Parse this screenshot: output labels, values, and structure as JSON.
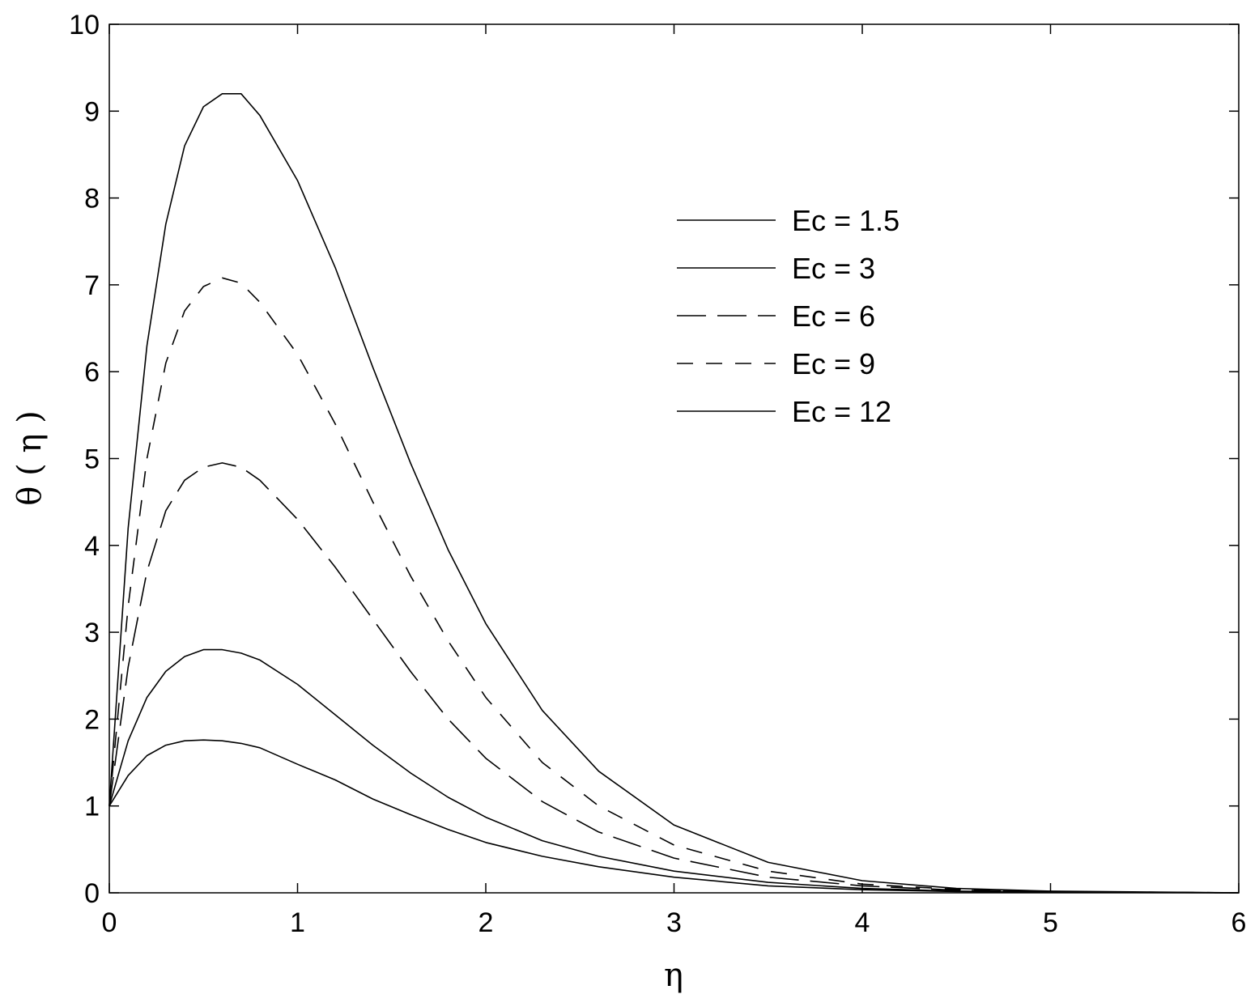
{
  "chart_data": {
    "type": "line",
    "xlabel": "η",
    "ylabel": "θ ( η )",
    "xlim": [
      0,
      6
    ],
    "ylim": [
      0,
      10
    ],
    "xticks": [
      "0",
      "1",
      "2",
      "3",
      "4",
      "5",
      "6"
    ],
    "yticks": [
      "0",
      "1",
      "2",
      "3",
      "4",
      "5",
      "6",
      "7",
      "8",
      "9",
      "10"
    ],
    "grid": false,
    "legend_position": "top-right",
    "series": [
      {
        "name": "Ec = 1.5",
        "dash": "solid",
        "x": [
          0,
          0.1,
          0.2,
          0.3,
          0.4,
          0.5,
          0.6,
          0.7,
          0.8,
          1.0,
          1.2,
          1.4,
          1.6,
          1.8,
          2.0,
          2.3,
          2.6,
          3.0,
          3.5,
          4.0,
          4.5,
          5.0,
          6.0
        ],
        "values": [
          1.0,
          1.35,
          1.58,
          1.7,
          1.75,
          1.76,
          1.75,
          1.72,
          1.67,
          1.48,
          1.3,
          1.08,
          0.9,
          0.73,
          0.58,
          0.42,
          0.3,
          0.18,
          0.08,
          0.035,
          0.015,
          0.006,
          0.0
        ]
      },
      {
        "name": "Ec = 3",
        "dash": "solid",
        "x": [
          0,
          0.1,
          0.2,
          0.3,
          0.4,
          0.5,
          0.6,
          0.7,
          0.8,
          1.0,
          1.2,
          1.4,
          1.6,
          1.8,
          2.0,
          2.3,
          2.6,
          3.0,
          3.5,
          4.0,
          4.5,
          5.0,
          6.0
        ],
        "values": [
          1.0,
          1.75,
          2.25,
          2.55,
          2.72,
          2.8,
          2.8,
          2.76,
          2.68,
          2.4,
          2.05,
          1.7,
          1.38,
          1.1,
          0.87,
          0.6,
          0.42,
          0.25,
          0.12,
          0.05,
          0.02,
          0.008,
          0.0
        ]
      },
      {
        "name": "Ec = 6",
        "dash": "long-dash",
        "x": [
          0,
          0.1,
          0.2,
          0.3,
          0.4,
          0.5,
          0.6,
          0.7,
          0.8,
          1.0,
          1.2,
          1.4,
          1.6,
          1.8,
          2.0,
          2.3,
          2.6,
          3.0,
          3.5,
          4.0,
          4.5,
          5.0,
          6.0
        ],
        "values": [
          1.0,
          2.6,
          3.7,
          4.4,
          4.75,
          4.9,
          4.95,
          4.9,
          4.75,
          4.3,
          3.75,
          3.15,
          2.55,
          2.0,
          1.55,
          1.05,
          0.7,
          0.4,
          0.18,
          0.08,
          0.03,
          0.012,
          0.0
        ]
      },
      {
        "name": "Ec = 9",
        "dash": "dash",
        "x": [
          0,
          0.1,
          0.2,
          0.3,
          0.4,
          0.5,
          0.6,
          0.7,
          0.8,
          1.0,
          1.2,
          1.4,
          1.6,
          1.8,
          2.0,
          2.3,
          2.6,
          3.0,
          3.5,
          4.0,
          4.5,
          5.0,
          6.0
        ],
        "values": [
          1.0,
          3.3,
          5.0,
          6.1,
          6.7,
          6.98,
          7.08,
          7.02,
          6.8,
          6.2,
          5.4,
          4.5,
          3.65,
          2.9,
          2.25,
          1.5,
          1.0,
          0.55,
          0.25,
          0.1,
          0.04,
          0.015,
          0.0
        ]
      },
      {
        "name": "Ec = 12",
        "dash": "solid",
        "x": [
          0,
          0.1,
          0.2,
          0.3,
          0.4,
          0.5,
          0.6,
          0.7,
          0.8,
          1.0,
          1.2,
          1.4,
          1.6,
          1.8,
          2.0,
          2.3,
          2.6,
          3.0,
          3.5,
          4.0,
          4.5,
          5.0,
          6.0
        ],
        "values": [
          1.0,
          4.2,
          6.3,
          7.7,
          8.6,
          9.05,
          9.2,
          9.2,
          8.95,
          8.2,
          7.2,
          6.05,
          4.95,
          3.95,
          3.1,
          2.1,
          1.4,
          0.78,
          0.35,
          0.14,
          0.05,
          0.02,
          0.0
        ]
      }
    ]
  }
}
